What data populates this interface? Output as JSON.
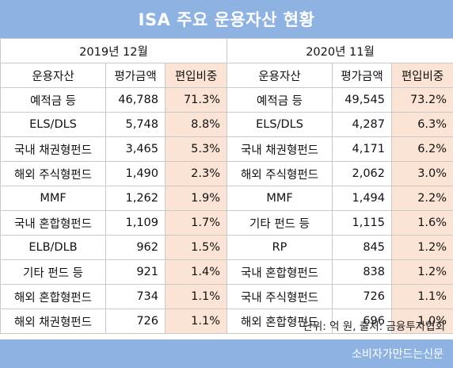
{
  "title": "ISA 주요 운용자산 현황",
  "left": {
    "period": "2019년 12월",
    "headers": [
      "운용자산",
      "평가금액",
      "편입비중"
    ],
    "rows": [
      [
        "예적금 등",
        "46,788",
        "71.3%"
      ],
      [
        "ELS/DLS",
        "5,748",
        "8.8%"
      ],
      [
        "국내 채권형펀드",
        "3,465",
        "5.3%"
      ],
      [
        "해외 주식형펀드",
        "1,490",
        "2.3%"
      ],
      [
        "MMF",
        "1,262",
        "1.9%"
      ],
      [
        "국내 혼합형펀드",
        "1,109",
        "1.7%"
      ],
      [
        "ELB/DLB",
        "962",
        "1.5%"
      ],
      [
        "기타 펀드 등",
        "921",
        "1.4%"
      ],
      [
        "해외 혼합형펀드",
        "734",
        "1.1%"
      ],
      [
        "해외 채권형펀드",
        "726",
        "1.1%"
      ]
    ]
  },
  "right": {
    "period": "2020년 11월",
    "headers": [
      "운용자산",
      "평가금액",
      "편입비중"
    ],
    "rows": [
      [
        "예적금 등",
        "49,545",
        "73.2%"
      ],
      [
        "ELS/DLS",
        "4,287",
        "6.3%"
      ],
      [
        "국내 채권형펀드",
        "4,171",
        "6.2%"
      ],
      [
        "해외 주식형펀드",
        "2,062",
        "3.0%"
      ],
      [
        "MMF",
        "1,494",
        "2.2%"
      ],
      [
        "기타 펀드 등",
        "1,115",
        "1.6%"
      ],
      [
        "RP",
        "845",
        "1.2%"
      ],
      [
        "국내 혼합형펀드",
        "838",
        "1.2%"
      ],
      [
        "국내 주식형펀드",
        "726",
        "1.1%"
      ],
      [
        "해외 혼합형펀드",
        "696",
        "1.0%"
      ]
    ]
  },
  "note": "단위: 억 원, 출처: 금융투자협회",
  "credit": "소비자가만드는신문",
  "colors": {
    "header_blue": "#8eb3e2",
    "ratio_peach": "#fbe4d5",
    "grid_border": "#c9c9c9"
  }
}
